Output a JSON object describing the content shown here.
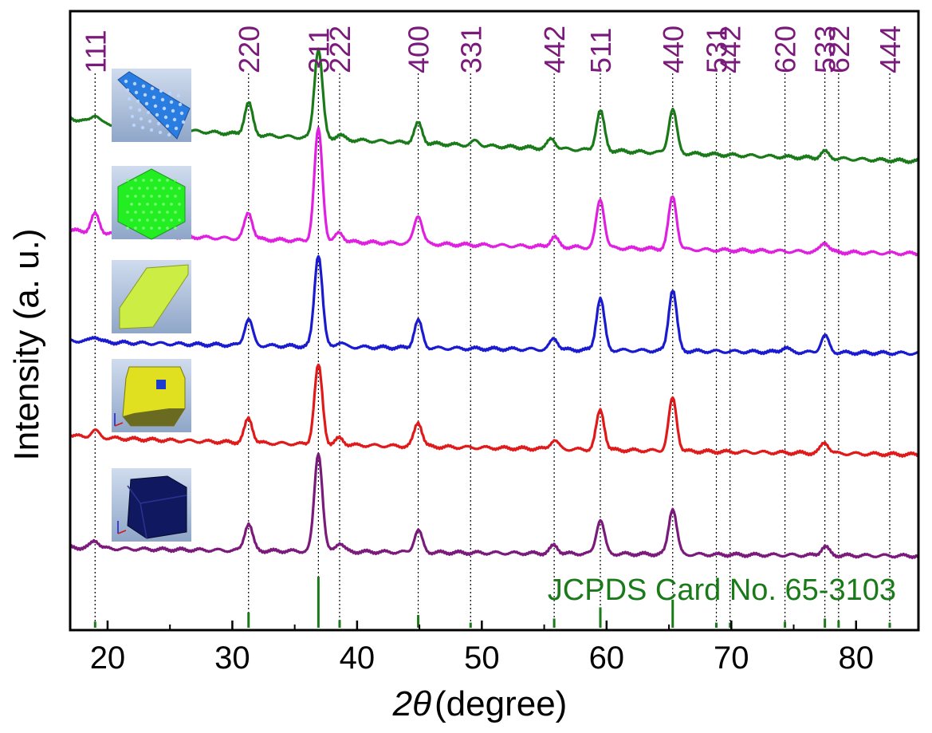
{
  "chart_data": {
    "type": "line",
    "xlabel": "(degree)",
    "xlabel_symbol": "2θ",
    "ylabel": "Intensity (a. u.)",
    "xlim": [
      17,
      85
    ],
    "x_ticks": [
      20,
      30,
      40,
      50,
      60,
      70,
      80
    ],
    "y_ticks": "none",
    "grid": false,
    "reference_label": "JCPDS Card No. 65-3103",
    "reference_color": "#1a7a1a",
    "label_color": "#7a1a7a",
    "peak_labels": [
      {
        "hkl": "111",
        "x": 19.0
      },
      {
        "hkl": "220",
        "x": 31.3
      },
      {
        "hkl": "311",
        "x": 36.9
      },
      {
        "hkl": "222",
        "x": 38.6
      },
      {
        "hkl": "400",
        "x": 44.9
      },
      {
        "hkl": "331",
        "x": 49.1
      },
      {
        "hkl": "442",
        "x": 55.8
      },
      {
        "hkl": "511",
        "x": 59.5
      },
      {
        "hkl": "440",
        "x": 65.3
      },
      {
        "hkl": "531",
        "x": 68.8
      },
      {
        "hkl": "442",
        "x": 69.9
      },
      {
        "hkl": "620",
        "x": 74.3
      },
      {
        "hkl": "533",
        "x": 77.5
      },
      {
        "hkl": "622",
        "x": 78.6
      },
      {
        "hkl": "444",
        "x": 82.7
      }
    ],
    "reference_lines": [
      {
        "x": 19.0,
        "intensity": 0.12
      },
      {
        "x": 31.3,
        "intensity": 0.3
      },
      {
        "x": 36.9,
        "intensity": 1.0
      },
      {
        "x": 38.6,
        "intensity": 0.15
      },
      {
        "x": 44.9,
        "intensity": 0.25
      },
      {
        "x": 49.1,
        "intensity": 0.1
      },
      {
        "x": 55.8,
        "intensity": 0.18
      },
      {
        "x": 59.5,
        "intensity": 0.4
      },
      {
        "x": 65.3,
        "intensity": 0.55
      },
      {
        "x": 68.8,
        "intensity": 0.1
      },
      {
        "x": 69.9,
        "intensity": 0.1
      },
      {
        "x": 74.3,
        "intensity": 0.12
      },
      {
        "x": 77.5,
        "intensity": 0.18
      },
      {
        "x": 78.6,
        "intensity": 0.14
      },
      {
        "x": 82.7,
        "intensity": 0.1
      }
    ],
    "series": [
      {
        "name": "sheet",
        "color": "#1a7a1a",
        "baseline_start": 1.18,
        "baseline_end": 0.18,
        "peaks": [
          [
            19.0,
            0.18
          ],
          [
            31.3,
            0.72
          ],
          [
            36.9,
            2.05
          ],
          [
            38.6,
            0.1
          ],
          [
            44.9,
            0.45
          ],
          [
            49.5,
            0.1
          ],
          [
            55.6,
            0.22
          ],
          [
            59.5,
            0.9
          ],
          [
            65.3,
            1.0
          ],
          [
            77.5,
            0.15
          ]
        ]
      },
      {
        "name": "hexagonal plate",
        "color": "#e020e0",
        "baseline_start": 0.55,
        "baseline_end": 0.0,
        "peaks": [
          [
            19.0,
            0.42
          ],
          [
            31.3,
            0.6
          ],
          [
            36.9,
            2.55
          ],
          [
            38.6,
            0.2
          ],
          [
            44.9,
            0.65
          ],
          [
            55.8,
            0.22
          ],
          [
            59.5,
            1.1
          ],
          [
            65.3,
            1.2
          ],
          [
            77.5,
            0.22
          ]
        ]
      },
      {
        "name": "elongated plate",
        "color": "#1a1ad0",
        "baseline_start": 0.3,
        "baseline_end": 0.0,
        "peaks": [
          [
            19.0,
            0.12
          ],
          [
            31.3,
            0.6
          ],
          [
            36.9,
            2.1
          ],
          [
            38.6,
            0.1
          ],
          [
            44.9,
            0.62
          ],
          [
            55.8,
            0.25
          ],
          [
            59.5,
            1.18
          ],
          [
            65.3,
            1.4
          ],
          [
            74.3,
            0.1
          ],
          [
            77.5,
            0.38
          ]
        ]
      },
      {
        "name": "truncated octahedron",
        "color": "#e01a1a",
        "baseline_start": 0.45,
        "baseline_end": 0.0,
        "peaks": [
          [
            19.0,
            0.15
          ],
          [
            31.3,
            0.55
          ],
          [
            36.9,
            1.8
          ],
          [
            38.6,
            0.15
          ],
          [
            44.9,
            0.55
          ],
          [
            55.8,
            0.2
          ],
          [
            59.5,
            0.9
          ],
          [
            65.3,
            1.2
          ],
          [
            77.5,
            0.25
          ]
        ]
      },
      {
        "name": "cube",
        "color": "#7a1a7a",
        "baseline_start": 0.2,
        "baseline_end": 0.0,
        "peaks": [
          [
            19.0,
            0.18
          ],
          [
            31.3,
            0.62
          ],
          [
            36.9,
            2.25
          ],
          [
            38.6,
            0.2
          ],
          [
            44.9,
            0.5
          ],
          [
            55.8,
            0.18
          ],
          [
            59.5,
            0.78
          ],
          [
            65.3,
            1.05
          ],
          [
            77.5,
            0.2
          ]
        ]
      }
    ],
    "insets": [
      {
        "shape": "perforated-sheet",
        "color": "#2a7de0"
      },
      {
        "shape": "perforated-hexagon",
        "color": "#22ee22"
      },
      {
        "shape": "elongated-hexagon",
        "color": "#ccee44"
      },
      {
        "shape": "truncated-octahedron",
        "color": "#e0e020"
      },
      {
        "shape": "cube",
        "color": "#101860"
      }
    ]
  }
}
